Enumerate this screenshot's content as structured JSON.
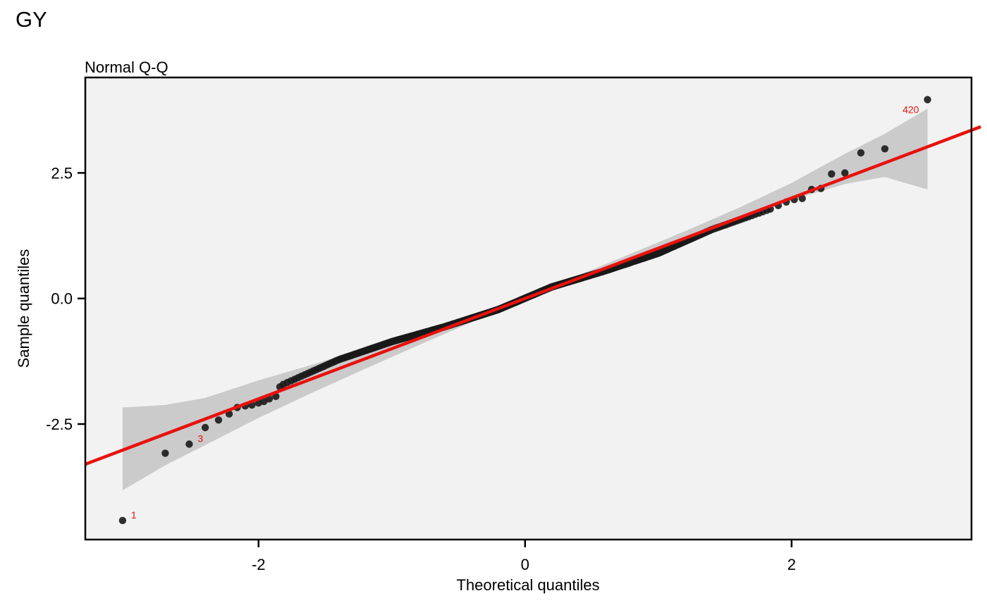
{
  "page": {
    "title": "GY"
  },
  "chart_data": {
    "type": "scatter",
    "title": "Normal Q-Q",
    "xlabel": "Theoretical quantiles",
    "ylabel": "Sample quantiles",
    "xlim": [
      -3.3,
      3.35
    ],
    "ylim": [
      -4.8,
      4.4
    ],
    "x_ticks": [
      -2,
      0,
      2
    ],
    "x_tick_labels": [
      "-2",
      "0",
      "2"
    ],
    "y_ticks": [
      -2.5,
      0,
      2.5
    ],
    "y_tick_labels": [
      "-2.5",
      "0.0",
      "2.5"
    ],
    "grid": false,
    "panel_background": "#F2F2F2",
    "point_color": "#1A1A1A",
    "line_color": "#E8120C",
    "band_color": "#CBCBCB",
    "label_color": "#E8120C",
    "n_points": 420,
    "reference_line": {
      "intercept": 0.0,
      "slope": 1.0
    },
    "confidence_band": {
      "x": [
        -3.02,
        -2.7,
        -2.4,
        -2.0,
        -1.6,
        -1.2,
        -0.8,
        -0.4,
        0.0,
        0.4,
        0.8,
        1.2,
        1.6,
        2.0,
        2.4,
        2.7,
        3.02
      ],
      "lower": [
        -3.82,
        -3.32,
        -2.92,
        -2.38,
        -1.88,
        -1.4,
        -0.93,
        -0.47,
        -0.06,
        0.35,
        0.78,
        1.18,
        1.58,
        1.96,
        2.28,
        2.42,
        2.17
      ],
      "upper": [
        -2.17,
        -2.12,
        -1.98,
        -1.63,
        -1.32,
        -0.99,
        -0.66,
        -0.33,
        0.06,
        0.46,
        0.9,
        1.34,
        1.8,
        2.3,
        2.88,
        3.28,
        3.78
      ]
    },
    "tail_points": [
      {
        "x": -3.02,
        "y": -4.42
      },
      {
        "x": -2.7,
        "y": -3.08
      },
      {
        "x": -2.52,
        "y": -2.9
      },
      {
        "x": -2.4,
        "y": -2.57
      },
      {
        "x": -2.3,
        "y": -2.42
      },
      {
        "x": -2.22,
        "y": -2.3
      },
      {
        "x": -2.16,
        "y": -2.17
      },
      {
        "x": -2.1,
        "y": -2.14
      },
      {
        "x": -2.05,
        "y": -2.12
      },
      {
        "x": -2.0,
        "y": -2.08
      },
      {
        "x": -1.96,
        "y": -2.05
      },
      {
        "x": -1.92,
        "y": -2.0
      },
      {
        "x": -1.87,
        "y": -1.95
      },
      {
        "x": -1.84,
        "y": -1.76
      },
      {
        "x": 1.84,
        "y": 1.78
      },
      {
        "x": 1.9,
        "y": 1.85
      },
      {
        "x": 1.96,
        "y": 1.92
      },
      {
        "x": 2.02,
        "y": 1.97
      },
      {
        "x": 2.08,
        "y": 1.99
      },
      {
        "x": 2.15,
        "y": 2.17
      },
      {
        "x": 2.22,
        "y": 2.19
      },
      {
        "x": 2.3,
        "y": 2.48
      },
      {
        "x": 2.4,
        "y": 2.5
      },
      {
        "x": 2.52,
        "y": 2.9
      },
      {
        "x": 2.7,
        "y": 2.98
      },
      {
        "x": 3.02,
        "y": 3.96
      }
    ],
    "point_labels": [
      {
        "x": -3.02,
        "y": -4.42,
        "text": "1",
        "anchor": "start"
      },
      {
        "x": -2.52,
        "y": -2.9,
        "text": "3",
        "anchor": "start"
      },
      {
        "x": 3.02,
        "y": 3.96,
        "text": "420",
        "anchor": "end"
      }
    ]
  }
}
